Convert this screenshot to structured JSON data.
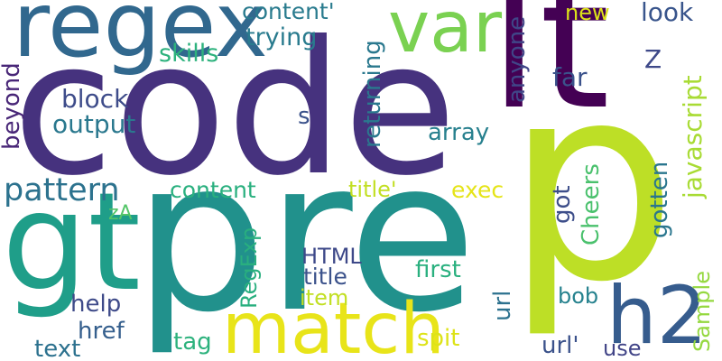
{
  "words": [
    {
      "key": "code",
      "text": "code",
      "color": "#46327e"
    },
    {
      "key": "p",
      "text": "p",
      "color": "#bddf26"
    },
    {
      "key": "pre",
      "text": "pre",
      "color": "#21918c"
    },
    {
      "key": "lt",
      "text": "lt",
      "color": "#440154"
    },
    {
      "key": "gt",
      "text": "gt",
      "color": "#1f9e89"
    },
    {
      "key": "regex",
      "text": "regex",
      "color": "#31688e"
    },
    {
      "key": "var",
      "text": "var",
      "color": "#7ad151"
    },
    {
      "key": "match",
      "text": "match",
      "color": "#e8e419"
    },
    {
      "key": "h2",
      "text": "h2",
      "color": "#365c8d"
    },
    {
      "key": "pattern",
      "text": "pattern",
      "color": "#2c728e"
    },
    {
      "key": "content-q",
      "text": "content'",
      "color": "#297b8e"
    },
    {
      "key": "trying",
      "text": "trying",
      "color": "#297b8e"
    },
    {
      "key": "skills",
      "text": "skills",
      "color": "#2db27d"
    },
    {
      "key": "new",
      "text": "new",
      "color": "#dde318"
    },
    {
      "key": "look",
      "text": "look",
      "color": "#39558c"
    },
    {
      "key": "z",
      "text": "Z",
      "color": "#3e4989"
    },
    {
      "key": "anyone",
      "text": "anyone",
      "color": "#404688"
    },
    {
      "key": "far",
      "text": "far",
      "color": "#3b528b"
    },
    {
      "key": "javascript",
      "text": "javascript",
      "color": "#a8db34"
    },
    {
      "key": "returning",
      "text": "returning",
      "color": "#2a788e"
    },
    {
      "key": "s",
      "text": "s",
      "color": "#3b528b"
    },
    {
      "key": "array",
      "text": "array",
      "color": "#27808e"
    },
    {
      "key": "beyond",
      "text": "beyond",
      "color": "#482677"
    },
    {
      "key": "block",
      "text": "block",
      "color": "#3e4c8a"
    },
    {
      "key": "output",
      "text": "output",
      "color": "#2a788e"
    },
    {
      "key": "content",
      "text": "content",
      "color": "#2ab07f"
    },
    {
      "key": "title-q",
      "text": "title'",
      "color": "#c2df23"
    },
    {
      "key": "exec",
      "text": "exec",
      "color": "#e5e419"
    },
    {
      "key": "got",
      "text": "got",
      "color": "#3d4e8a"
    },
    {
      "key": "cheers",
      "text": "Cheers",
      "color": "#4ac16d"
    },
    {
      "key": "gotten",
      "text": "gotten",
      "color": "#2a768e"
    },
    {
      "key": "za",
      "text": "zA",
      "color": "#54c568"
    },
    {
      "key": "html",
      "text": "HTML",
      "color": "#3e4989"
    },
    {
      "key": "regexp",
      "text": "RegExp",
      "color": "#29af7f"
    },
    {
      "key": "title",
      "text": "title",
      "color": "#3b528b"
    },
    {
      "key": "first",
      "text": "first",
      "color": "#2ab07f"
    },
    {
      "key": "url",
      "text": "url",
      "color": "#2c718e"
    },
    {
      "key": "sample",
      "text": "Sample",
      "color": "#95d840"
    },
    {
      "key": "item",
      "text": "item",
      "color": "#c2df23"
    },
    {
      "key": "bob",
      "text": "bob",
      "color": "#26828e"
    },
    {
      "key": "help",
      "text": "help",
      "color": "#3e4a89"
    },
    {
      "key": "href",
      "text": "href",
      "color": "#355f8d"
    },
    {
      "key": "tag",
      "text": "tag",
      "color": "#2db27d"
    },
    {
      "key": "spit",
      "text": "spit",
      "color": "#dde318"
    },
    {
      "key": "url-q",
      "text": "url'",
      "color": "#3b528b"
    },
    {
      "key": "use",
      "text": "use",
      "color": "#414487"
    },
    {
      "key": "text",
      "text": "text",
      "color": "#2c718e"
    }
  ]
}
